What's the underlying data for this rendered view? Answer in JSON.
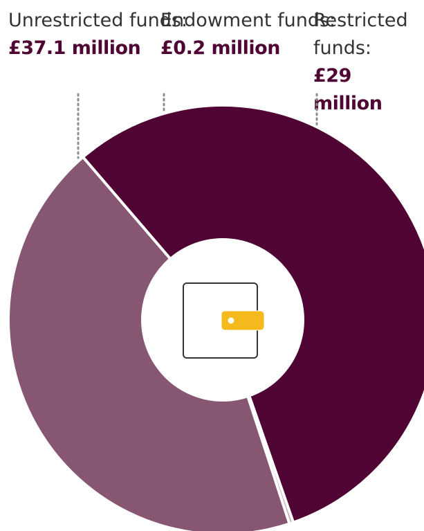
{
  "chart_data": {
    "type": "pie",
    "title": "",
    "slices": [
      {
        "name": "Unrestricted funds:",
        "value": 37.1,
        "display": "£37.1 million",
        "color": "#4f0433"
      },
      {
        "name": "Endowment funds:",
        "value": 0.2,
        "display": "£0.2 million",
        "color": "#c8a4b6"
      },
      {
        "name": "Restricted funds:",
        "value": 29,
        "display": "£29 million",
        "color": "#875672"
      }
    ],
    "donut": true,
    "center_icon": "wallet-icon",
    "accent_color": "#f4b91d"
  }
}
